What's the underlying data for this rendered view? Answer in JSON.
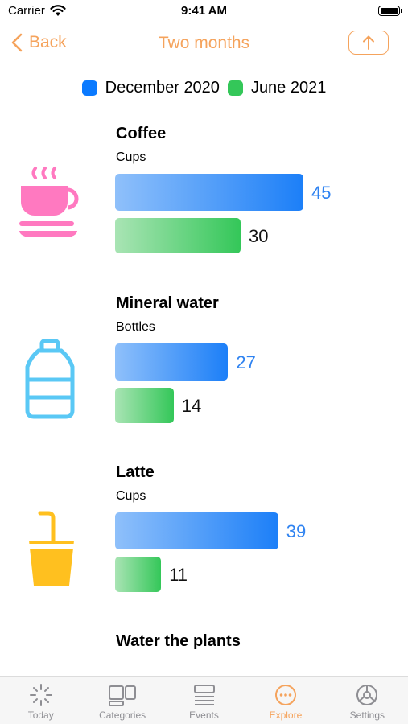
{
  "status_bar": {
    "carrier": "Carrier",
    "time": "9:41 AM"
  },
  "nav": {
    "back_label": "Back",
    "title": "Two months",
    "share_icon": "share-up-arrow-icon"
  },
  "colors": {
    "accent": "#f5a35c",
    "december": "#0a7aff",
    "june": "#34c759"
  },
  "legend": [
    {
      "label": "December 2020",
      "color": "#0a7aff"
    },
    {
      "label": "June 2021",
      "color": "#34c759"
    }
  ],
  "chart_data": {
    "type": "bar",
    "categories": [
      "Coffee",
      "Mineral water",
      "Latte",
      "Water the plants"
    ],
    "units": [
      "Cups",
      "Bottles",
      "Cups",
      ""
    ],
    "series": [
      {
        "name": "December 2020",
        "values": [
          45,
          27,
          39,
          null
        ]
      },
      {
        "name": "June 2021",
        "values": [
          30,
          14,
          11,
          null
        ]
      }
    ]
  },
  "rows": [
    {
      "title": "Coffee",
      "unit": "Cups",
      "dec_value": "45",
      "jun_value": "30",
      "icon": "coffee-cup-icon",
      "icon_color": "#ff79c0"
    },
    {
      "title": "Mineral water",
      "unit": "Bottles",
      "dec_value": "27",
      "jun_value": "14",
      "icon": "water-bottle-icon",
      "icon_color": "#5ac8f5"
    },
    {
      "title": "Latte",
      "unit": "Cups",
      "dec_value": "39",
      "jun_value": "11",
      "icon": "latte-cup-icon",
      "icon_color": "#ffc01f"
    },
    {
      "title": "Water the plants"
    }
  ],
  "tabs": [
    {
      "label": "Today",
      "icon": "today-icon",
      "active": false
    },
    {
      "label": "Categories",
      "icon": "categories-icon",
      "active": false
    },
    {
      "label": "Events",
      "icon": "events-icon",
      "active": false
    },
    {
      "label": "Explore",
      "icon": "explore-icon",
      "active": true
    },
    {
      "label": "Settings",
      "icon": "settings-icon",
      "active": false
    }
  ]
}
